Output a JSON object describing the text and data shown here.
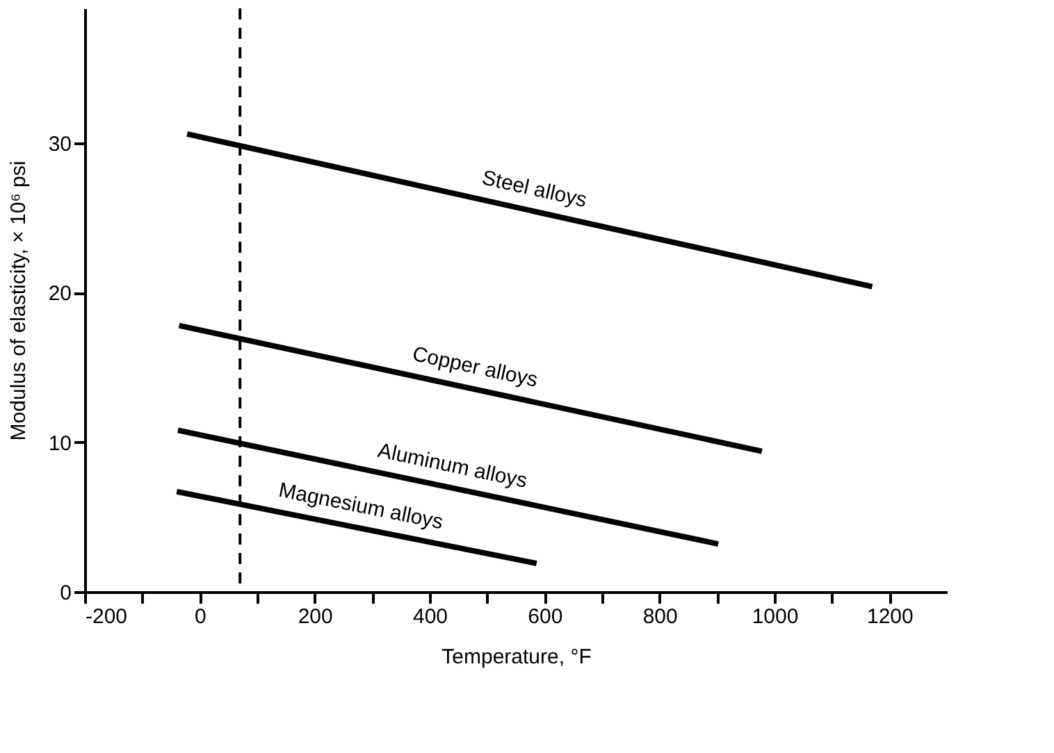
{
  "chart_data": {
    "type": "line",
    "xlabel": "Temperature, °F",
    "ylabel": "Modulus of elasticity, × 10⁶ psi",
    "xlim": [
      -200,
      1300
    ],
    "ylim": [
      0,
      39
    ],
    "xticks": [
      -200,
      {
        "value": -100,
        "label": null
      },
      0,
      {
        "value": 100,
        "label": null
      },
      200,
      {
        "value": 300,
        "label": null
      },
      400,
      {
        "value": 500,
        "label": null
      },
      600,
      {
        "value": 700,
        "label": null
      },
      800,
      {
        "value": 900,
        "label": null
      },
      1000,
      {
        "value": 1100,
        "label": null
      },
      1200
    ],
    "yticks": [
      0,
      10,
      20,
      30
    ],
    "series": [
      {
        "name": "Steel alloys",
        "color": "#000000",
        "x": [
          -22,
          1170
        ],
        "values": [
          30.6,
          20.4
        ]
      },
      {
        "name": "Copper alloys",
        "color": "#000000",
        "x": [
          -36,
          978
        ],
        "values": [
          17.8,
          9.4
        ]
      },
      {
        "name": "Aluminum alloys",
        "color": "#000000",
        "x": [
          -38,
          902
        ],
        "values": [
          10.8,
          3.2
        ]
      },
      {
        "name": "Magnesium alloys",
        "color": "#000000",
        "x": [
          -40,
          586
        ],
        "values": [
          6.7,
          1.9
        ]
      }
    ],
    "ref_lines": [
      {
        "axis": "x",
        "value": 70,
        "label": null,
        "color": "#000000",
        "line_style": "dashed"
      }
    ],
    "grid": false,
    "line_style": "solid",
    "marker": "none"
  }
}
